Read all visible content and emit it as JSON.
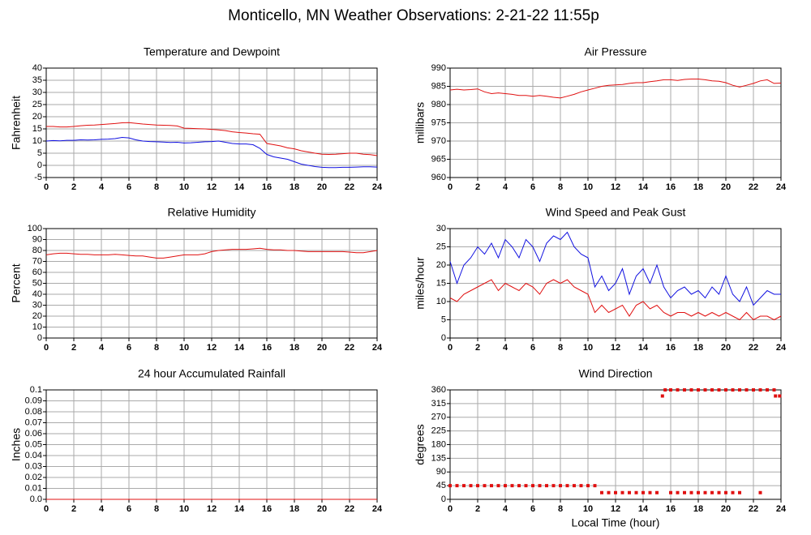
{
  "title": "Monticello, MN Weather Observations: 2-21-22 11:55p",
  "chart_data": [
    {
      "type": "line",
      "title": "Temperature and Dewpoint",
      "ylabel": "Fahrenheit",
      "x": [
        0,
        0.5,
        1,
        1.5,
        2,
        2.5,
        3,
        3.5,
        4,
        4.5,
        5,
        5.5,
        6,
        6.5,
        7,
        7.5,
        8,
        8.5,
        9,
        9.5,
        10,
        10.5,
        11,
        11.5,
        12,
        12.5,
        13,
        13.5,
        14,
        14.5,
        15,
        15.5,
        16,
        16.5,
        17,
        17.5,
        18,
        18.5,
        19,
        19.5,
        20,
        20.5,
        21,
        21.5,
        22,
        22.5,
        23,
        23.5,
        24
      ],
      "series": [
        {
          "color": "#e01010",
          "values": [
            16,
            16,
            15.8,
            15.8,
            16,
            16.3,
            16.5,
            16.6,
            16.8,
            17,
            17.2,
            17.5,
            17.6,
            17.3,
            17,
            16.8,
            16.6,
            16.5,
            16.4,
            16.2,
            15.3,
            15.2,
            15.1,
            15,
            14.8,
            14.6,
            14.3,
            13.8,
            13.5,
            13.3,
            13,
            12.8,
            9,
            8.5,
            8,
            7.2,
            6.8,
            6,
            5.5,
            5,
            4.6,
            4.5,
            4.6,
            4.8,
            5,
            5,
            4.6,
            4.4,
            4
          ]
        },
        {
          "color": "#1010e0",
          "values": [
            10,
            10.2,
            10.1,
            10.3,
            10.3,
            10.5,
            10.4,
            10.5,
            10.7,
            10.8,
            11,
            11.5,
            11.3,
            10.5,
            10,
            9.8,
            9.7,
            9.6,
            9.4,
            9.5,
            9.2,
            9.3,
            9.5,
            9.7,
            9.8,
            10,
            9.5,
            9,
            8.8,
            8.8,
            8.5,
            7,
            4.5,
            3.5,
            3,
            2.5,
            1.5,
            0.5,
            0,
            -0.5,
            -0.8,
            -0.9,
            -0.9,
            -0.8,
            -0.8,
            -0.7,
            -0.6,
            -0.6,
            -0.7
          ]
        }
      ],
      "xlim": [
        0,
        24
      ],
      "xticks": [
        0,
        2,
        4,
        6,
        8,
        10,
        12,
        14,
        16,
        18,
        20,
        22,
        24
      ],
      "ylim": [
        -5,
        40
      ],
      "yticks": [
        -5,
        0,
        5,
        10,
        15,
        20,
        25,
        30,
        35,
        40
      ],
      "grid": true
    },
    {
      "type": "line",
      "title": "Air Pressure",
      "ylabel": "millibars",
      "x": [
        0,
        0.5,
        1,
        1.5,
        2,
        2.5,
        3,
        3.5,
        4,
        4.5,
        5,
        5.5,
        6,
        6.5,
        7,
        7.5,
        8,
        8.5,
        9,
        9.5,
        10,
        10.5,
        11,
        11.5,
        12,
        12.5,
        13,
        13.5,
        14,
        14.5,
        15,
        15.5,
        16,
        16.5,
        17,
        17.5,
        18,
        18.5,
        19,
        19.5,
        20,
        20.5,
        21,
        21.5,
        22,
        22.5,
        23,
        23.5,
        24
      ],
      "series": [
        {
          "color": "#e01010",
          "values": [
            984,
            984.2,
            984,
            984.1,
            984.3,
            983.5,
            983,
            983.2,
            983,
            982.8,
            982.5,
            982.5,
            982.3,
            982.5,
            982.3,
            982,
            981.8,
            982.3,
            982.8,
            983.5,
            984,
            984.5,
            985,
            985.3,
            985.4,
            985.5,
            985.8,
            986,
            986,
            986.3,
            986.5,
            986.8,
            986.8,
            986.6,
            986.9,
            987,
            987,
            986.8,
            986.5,
            986.4,
            986,
            985.3,
            984.8,
            985.3,
            985.8,
            986.5,
            986.8,
            985.8,
            985.9
          ]
        }
      ],
      "xlim": [
        0,
        24
      ],
      "xticks": [
        0,
        2,
        4,
        6,
        8,
        10,
        12,
        14,
        16,
        18,
        20,
        22,
        24
      ],
      "ylim": [
        960,
        990
      ],
      "yticks": [
        960,
        965,
        970,
        975,
        980,
        985,
        990
      ],
      "grid": true
    },
    {
      "type": "line",
      "title": "Relative Humidity",
      "ylabel": "Percent",
      "x": [
        0,
        0.5,
        1,
        1.5,
        2,
        2.5,
        3,
        3.5,
        4,
        4.5,
        5,
        5.5,
        6,
        6.5,
        7,
        7.5,
        8,
        8.5,
        9,
        9.5,
        10,
        10.5,
        11,
        11.5,
        12,
        12.5,
        13,
        13.5,
        14,
        14.5,
        15,
        15.5,
        16,
        16.5,
        17,
        17.5,
        18,
        18.5,
        19,
        19.5,
        20,
        20.5,
        21,
        21.5,
        22,
        22.5,
        23,
        23.5,
        24
      ],
      "series": [
        {
          "color": "#e01010",
          "values": [
            76,
            77,
            77.5,
            77.5,
            77,
            76.5,
            76.5,
            76,
            76,
            76,
            76.5,
            76,
            75.5,
            75,
            75,
            74,
            73,
            73,
            74,
            75,
            76,
            76,
            76,
            77,
            79,
            80,
            80.5,
            81,
            81,
            81,
            81.5,
            82,
            81,
            80.5,
            80.5,
            80,
            80,
            79.5,
            79,
            79,
            79,
            79,
            79,
            79,
            78.5,
            78,
            78,
            79,
            80
          ]
        }
      ],
      "xlim": [
        0,
        24
      ],
      "xticks": [
        0,
        2,
        4,
        6,
        8,
        10,
        12,
        14,
        16,
        18,
        20,
        22,
        24
      ],
      "ylim": [
        0,
        100
      ],
      "yticks": [
        0,
        10,
        20,
        30,
        40,
        50,
        60,
        70,
        80,
        90,
        100
      ],
      "grid": true
    },
    {
      "type": "line",
      "title": "Wind Speed and Peak Gust",
      "ylabel": "miles/hour",
      "x": [
        0,
        0.5,
        1,
        1.5,
        2,
        2.5,
        3,
        3.5,
        4,
        4.5,
        5,
        5.5,
        6,
        6.5,
        7,
        7.5,
        8,
        8.5,
        9,
        9.5,
        10,
        10.5,
        11,
        11.5,
        12,
        12.5,
        13,
        13.5,
        14,
        14.5,
        15,
        15.5,
        16,
        16.5,
        17,
        17.5,
        18,
        18.5,
        19,
        19.5,
        20,
        20.5,
        21,
        21.5,
        22,
        22.5,
        23,
        23.5,
        24
      ],
      "series": [
        {
          "color": "#1010e0",
          "values": [
            21,
            15,
            20,
            22,
            25,
            23,
            26,
            22,
            27,
            25,
            22,
            27,
            25,
            21,
            26,
            28,
            27,
            29,
            25,
            23,
            22,
            14,
            17,
            13,
            15,
            19,
            12,
            17,
            19,
            15,
            20,
            14,
            11,
            13,
            14,
            12,
            13,
            11,
            14,
            12,
            17,
            12,
            10,
            14,
            9,
            11,
            13,
            12,
            12
          ]
        },
        {
          "color": "#e01010",
          "values": [
            11,
            10,
            12,
            13,
            14,
            15,
            16,
            13,
            15,
            14,
            13,
            15,
            14,
            12,
            15,
            16,
            15,
            16,
            14,
            13,
            12,
            7,
            9,
            7,
            8,
            9,
            6,
            9,
            10,
            8,
            9,
            7,
            6,
            7,
            7,
            6,
            7,
            6,
            7,
            6,
            7,
            6,
            5,
            7,
            5,
            6,
            6,
            5,
            6
          ]
        }
      ],
      "xlim": [
        0,
        24
      ],
      "xticks": [
        0,
        2,
        4,
        6,
        8,
        10,
        12,
        14,
        16,
        18,
        20,
        22,
        24
      ],
      "ylim": [
        0,
        30
      ],
      "yticks": [
        0,
        5,
        10,
        15,
        20,
        25,
        30
      ],
      "grid": true
    },
    {
      "type": "line",
      "title": "24 hour Accumulated Rainfall",
      "ylabel": "Inches",
      "x": [
        0,
        24
      ],
      "series": [
        {
          "color": "#e01010",
          "values": [
            0,
            0
          ]
        }
      ],
      "xlim": [
        0,
        24
      ],
      "xticks": [
        0,
        2,
        4,
        6,
        8,
        10,
        12,
        14,
        16,
        18,
        20,
        22,
        24
      ],
      "ylim": [
        0,
        0.1
      ],
      "yticks": [
        {
          "value": 0,
          "label": "0.0"
        },
        0.01,
        0.02,
        0.03,
        0.04,
        0.05,
        0.06,
        0.07,
        0.08,
        0.09,
        0.1
      ],
      "grid": true
    },
    {
      "type": "scatter",
      "title": "Wind Direction",
      "ylabel": "degrees",
      "xlabel": "Local Time (hour)",
      "x": [
        0,
        0.5,
        1,
        1.5,
        2,
        2.5,
        3,
        3.5,
        4,
        4.5,
        5,
        5.5,
        6,
        6.5,
        7,
        7.5,
        8,
        8.5,
        9,
        9.5,
        10,
        10.5,
        11,
        11.5,
        12,
        12.5,
        13,
        13.5,
        14,
        14.5,
        15,
        16,
        16.5,
        17,
        17.5,
        18,
        18.5,
        19,
        19.5,
        20,
        20.5,
        21,
        22.5,
        15.6,
        16,
        16.5,
        17,
        17.5,
        18,
        18.5,
        19,
        19.5,
        20,
        20.5,
        21,
        21.5,
        22,
        22.5,
        23,
        23.5,
        15.4,
        23.6,
        23.9
      ],
      "series": [
        {
          "color": "#e01010",
          "values": [
            45,
            45,
            45,
            45,
            45,
            45,
            45,
            45,
            45,
            45,
            45,
            45,
            45,
            45,
            45,
            45,
            45,
            45,
            45,
            45,
            45,
            45,
            22,
            22,
            22,
            22,
            22,
            22,
            22,
            22,
            22,
            22,
            22,
            22,
            22,
            22,
            22,
            22,
            22,
            22,
            22,
            22,
            22,
            360,
            360,
            360,
            360,
            360,
            360,
            360,
            360,
            360,
            360,
            360,
            360,
            360,
            360,
            360,
            360,
            360,
            340,
            340,
            340
          ]
        }
      ],
      "xlim": [
        0,
        24
      ],
      "xticks": [
        0,
        2,
        4,
        6,
        8,
        10,
        12,
        14,
        16,
        18,
        20,
        22,
        24
      ],
      "ylim": [
        0,
        360
      ],
      "yticks": [
        0,
        45,
        90,
        135,
        180,
        225,
        270,
        315,
        360
      ],
      "grid": true
    }
  ]
}
